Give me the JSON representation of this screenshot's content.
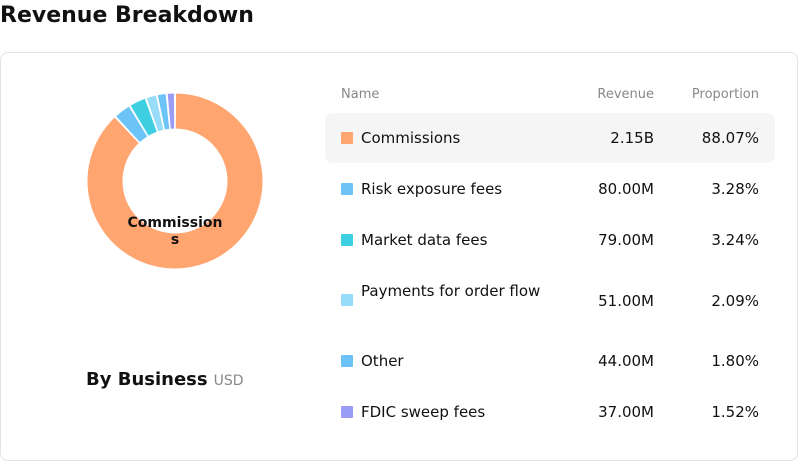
{
  "page": {
    "title": "Revenue Breakdown"
  },
  "donut": {
    "center_label": "Commissions",
    "subtitle": "By Business",
    "currency": "USD",
    "highlight_index": 0
  },
  "table": {
    "headers": {
      "name": "Name",
      "revenue": "Revenue",
      "proportion": "Proportion"
    }
  },
  "chart_data": {
    "type": "pie",
    "title": "By Business",
    "unit": "USD",
    "series": [
      {
        "name": "Commissions",
        "revenue": "2.15B",
        "proportion": "88.07%",
        "value": 88.07,
        "color": "#ffa570"
      },
      {
        "name": "Risk exposure fees",
        "revenue": "80.00M",
        "proportion": "3.28%",
        "value": 3.28,
        "color": "#6cc3f7"
      },
      {
        "name": "Market data fees",
        "revenue": "79.00M",
        "proportion": "3.24%",
        "value": 3.24,
        "color": "#3fcfe3"
      },
      {
        "name": "Payments for order flow",
        "revenue": "51.00M",
        "proportion": "2.09%",
        "value": 2.09,
        "color": "#97dcf8"
      },
      {
        "name": "Other",
        "revenue": "44.00M",
        "proportion": "1.80%",
        "value": 1.8,
        "color": "#6cc3f7"
      },
      {
        "name": "FDIC sweep fees",
        "revenue": "37.00M",
        "proportion": "1.52%",
        "value": 1.52,
        "color": "#9b9cf5"
      }
    ]
  }
}
